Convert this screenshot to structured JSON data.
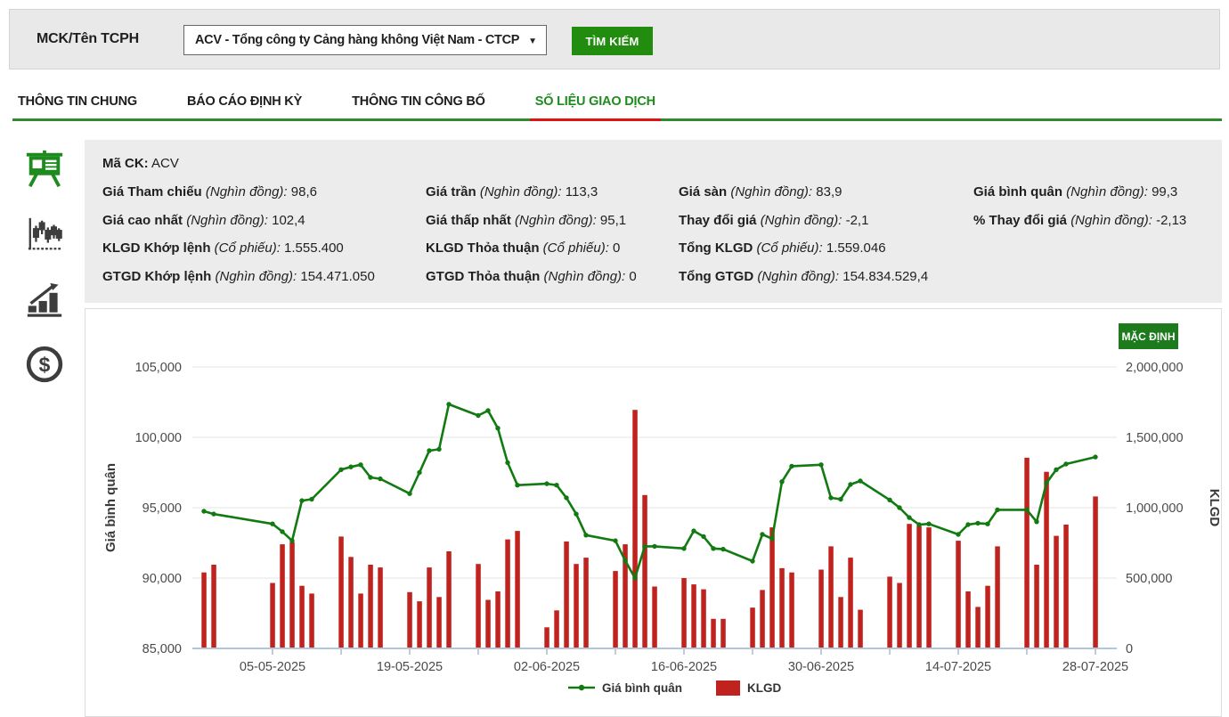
{
  "topbar": {
    "label": "MCK/Tên TCPH",
    "select_value": "ACV - Tổng công ty Cảng hàng không Việt Nam - CTCP",
    "search_button": "TÌM KIẾM"
  },
  "tabs": [
    {
      "label": "THÔNG TIN CHUNG",
      "active": false
    },
    {
      "label": "BÁO CÁO ĐỊNH KỲ",
      "active": false
    },
    {
      "label": "THÔNG TIN CÔNG BỐ",
      "active": false
    },
    {
      "label": "SỐ LIỆU GIAO DỊCH",
      "active": true
    }
  ],
  "sidebar": {
    "icons": [
      "presentation-chart",
      "candlestick-chart",
      "bar-chart-arrow",
      "dollar-coin"
    ]
  },
  "info": {
    "ma_ck_label": "Mã CK:",
    "ma_ck_value": "ACV",
    "rows": [
      [
        {
          "label": "Giá Tham chiếu",
          "unit": "Nghìn đồng",
          "value": "98,6"
        },
        {
          "label": "Giá trần",
          "unit": "Nghìn đồng",
          "value": "113,3"
        },
        {
          "label": "Giá sàn",
          "unit": "Nghìn đồng",
          "value": "83,9"
        },
        {
          "label": "Giá bình quân",
          "unit": "Nghìn đồng",
          "value": "99,3"
        }
      ],
      [
        {
          "label": "Giá cao nhất",
          "unit": "Nghìn đồng",
          "value": "102,4"
        },
        {
          "label": "Giá thấp nhất",
          "unit": "Nghìn đồng",
          "value": "95,1"
        },
        {
          "label": "Thay đổi giá",
          "unit": "Nghìn đồng",
          "value": "-2,1"
        },
        {
          "label": "% Thay đổi giá",
          "unit": "Nghìn đồng",
          "value": "-2,13"
        }
      ],
      [
        {
          "label": "KLGD Khớp lệnh",
          "unit": "Cổ phiếu",
          "value": "1.555.400"
        },
        {
          "label": "KLGD Thỏa thuận",
          "unit": "Cổ phiếu",
          "value": "0"
        },
        {
          "label": "Tổng KLGD",
          "unit": "Cổ phiếu",
          "value": "1.559.046"
        }
      ],
      [
        {
          "label": "GTGD Khớp lệnh",
          "unit": "Nghìn đồng",
          "value": "154.471.050"
        },
        {
          "label": "GTGD Thỏa thuận",
          "unit": "Nghìn đồng",
          "value": "0"
        },
        {
          "label": "Tổng GTGD",
          "unit": "Nghìn đồng",
          "value": "154.834.529,4"
        }
      ]
    ]
  },
  "chart": {
    "default_button": "MẶC ĐỊNH",
    "colors": {
      "line": "#117a11",
      "bar": "#c0231d",
      "grid": "#e4e4e4",
      "axis_line": "#b4c6da",
      "tick": "#9aaabb",
      "label": "#4a4a4a"
    },
    "y_left": {
      "title": "Giá bình quân",
      "min": 85000,
      "max": 105000,
      "step": 5000
    },
    "y_right": {
      "title": "KLGD",
      "min": 0,
      "max": 2000000,
      "step": 500000
    },
    "x_tick_labels": [
      "05-05-2025",
      "19-05-2025",
      "02-06-2025",
      "16-06-2025",
      "30-06-2025",
      "14-07-2025",
      "28-07-2025"
    ]
  },
  "chart_data": {
    "type": "bar+line combo",
    "title": "",
    "x": [
      "28-04-2025",
      "29-04-2025",
      "05-05-2025",
      "06-05-2025",
      "07-05-2025",
      "08-05-2025",
      "09-05-2025",
      "12-05-2025",
      "13-05-2025",
      "14-05-2025",
      "15-05-2025",
      "16-05-2025",
      "19-05-2025",
      "20-05-2025",
      "21-05-2025",
      "22-05-2025",
      "23-05-2025",
      "26-05-2025",
      "27-05-2025",
      "28-05-2025",
      "29-05-2025",
      "30-05-2025",
      "02-06-2025",
      "03-06-2025",
      "04-06-2025",
      "05-06-2025",
      "06-06-2025",
      "09-06-2025",
      "10-06-2025",
      "11-06-2025",
      "12-06-2025",
      "13-06-2025",
      "16-06-2025",
      "17-06-2025",
      "18-06-2025",
      "19-06-2025",
      "20-06-2025",
      "23-06-2025",
      "24-06-2025",
      "25-06-2025",
      "26-06-2025",
      "27-06-2025",
      "30-06-2025",
      "01-07-2025",
      "02-07-2025",
      "03-07-2025",
      "04-07-2025",
      "07-07-2025",
      "08-07-2025",
      "09-07-2025",
      "10-07-2025",
      "11-07-2025",
      "14-07-2025",
      "15-07-2025",
      "16-07-2025",
      "17-07-2025",
      "18-07-2025",
      "21-07-2025",
      "22-07-2025",
      "23-07-2025",
      "24-07-2025",
      "25-07-2025",
      "28-07-2025"
    ],
    "series": [
      {
        "name": "Giá bình quân",
        "type": "line",
        "axis": "left",
        "ylim": [
          85000,
          105000
        ],
        "values": [
          94750,
          94550,
          93850,
          93300,
          92650,
          95500,
          95600,
          97700,
          97900,
          98050,
          97150,
          97050,
          96000,
          97500,
          99050,
          99150,
          102350,
          101550,
          101900,
          100650,
          98200,
          96600,
          96700,
          96600,
          95700,
          94550,
          93050,
          92650,
          91250,
          90000,
          92250,
          92250,
          92100,
          93350,
          92950,
          92100,
          92050,
          91200,
          93100,
          92800,
          96850,
          97950,
          98050,
          95700,
          95600,
          96650,
          96900,
          95550,
          95000,
          94300,
          93800,
          93850,
          93100,
          93800,
          93900,
          93850,
          94850,
          94850,
          94000,
          96750,
          97700,
          98100,
          98600
        ]
      },
      {
        "name": "KLGD",
        "type": "bar",
        "axis": "right",
        "ylim": [
          0,
          2000000
        ],
        "values": [
          540000,
          595000,
          465000,
          740000,
          755000,
          445000,
          390000,
          795000,
          650000,
          390000,
          595000,
          575000,
          400000,
          335000,
          575000,
          365000,
          690000,
          600000,
          345000,
          405000,
          775000,
          835000,
          150000,
          270000,
          760000,
          600000,
          645000,
          550000,
          740000,
          1695000,
          1090000,
          440000,
          500000,
          455000,
          420000,
          210000,
          210000,
          290000,
          415000,
          860000,
          570000,
          540000,
          560000,
          725000,
          365000,
          645000,
          275000,
          510000,
          465000,
          885000,
          870000,
          860000,
          765000,
          405000,
          295000,
          445000,
          725000,
          1355000,
          595000,
          1255000,
          800000,
          880000,
          1080000
        ]
      }
    ],
    "legend_position": "bottom-center",
    "grid": "horizontal-only"
  }
}
